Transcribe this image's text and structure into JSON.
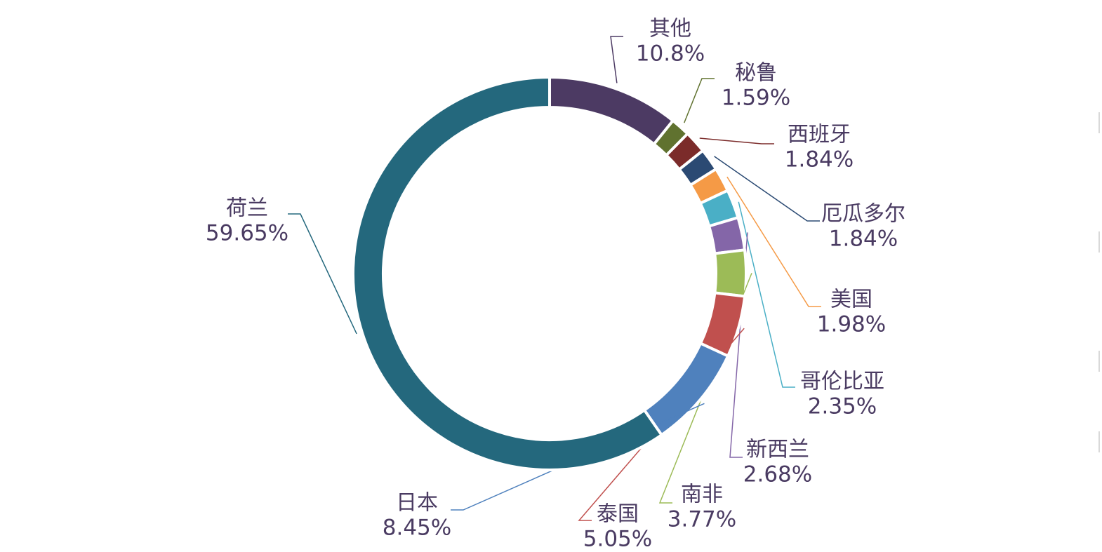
{
  "chart_data": {
    "type": "pie",
    "style": "donut",
    "title": "",
    "legend": "none",
    "slices": [
      {
        "label": "其他",
        "value": 10.8,
        "value_label": "10.8%",
        "color": "#4c3a63"
      },
      {
        "label": "秘鲁",
        "value": 1.59,
        "value_label": "1.59%",
        "color": "#60722f"
      },
      {
        "label": "西班牙",
        "value": 1.84,
        "value_label": "1.84%",
        "color": "#7b2b2a"
      },
      {
        "label": "厄瓜多尔",
        "value": 1.84,
        "value_label": "1.84%",
        "color": "#2b4a73"
      },
      {
        "label": "美国",
        "value": 1.98,
        "value_label": "1.98%",
        "color": "#f59a46"
      },
      {
        "label": "哥伦比亚",
        "value": 2.35,
        "value_label": "2.35%",
        "color": "#4aafc6"
      },
      {
        "label": "新西兰",
        "value": 2.68,
        "value_label": "2.68%",
        "color": "#8466a8"
      },
      {
        "label": "南非",
        "value": 3.77,
        "value_label": "3.77%",
        "color": "#9cbb57"
      },
      {
        "label": "泰国",
        "value": 5.05,
        "value_label": "5.05%",
        "color": "#c0504e"
      },
      {
        "label": "日本",
        "value": 8.45,
        "value_label": "8.45%",
        "color": "#4f81bd"
      },
      {
        "label": "荷兰",
        "value": 59.65,
        "value_label": "59.65%",
        "color": "#24687d"
      }
    ]
  }
}
